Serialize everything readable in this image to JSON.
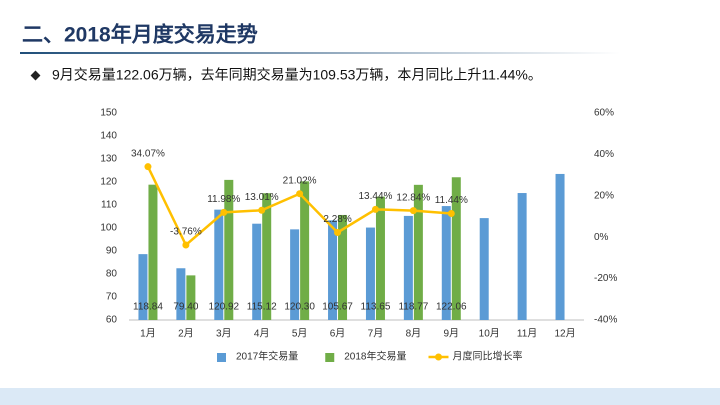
{
  "chart_data": {
    "type": "bar-line",
    "title": "二、2018年月度交易走势",
    "subtitle": "9月交易量122.06万辆，去年同期交易量为109.53万辆，本月同比上升11.44%。",
    "categories": [
      "1月",
      "2月",
      "3月",
      "4月",
      "5月",
      "6月",
      "7月",
      "8月",
      "9月",
      "10月",
      "11月",
      "12月"
    ],
    "series": [
      {
        "name": "2017年交易量",
        "type": "bar",
        "color": "#5b9bd5",
        "values": [
          88.64,
          82.5,
          107.98,
          101.87,
          99.41,
          103.31,
          100.19,
          105.26,
          109.53,
          104.3,
          115.2,
          123.5
        ]
      },
      {
        "name": "2018年交易量",
        "type": "bar",
        "color": "#70ad47",
        "values": [
          118.84,
          79.4,
          120.92,
          115.12,
          120.3,
          105.67,
          113.65,
          118.77,
          122.06,
          null,
          null,
          null
        ],
        "value_labels": [
          "118.84",
          "79.40",
          "120.92",
          "115.12",
          "120.30",
          "105.67",
          "113.65",
          "118.77",
          "122.06",
          null,
          null,
          null
        ]
      },
      {
        "name": "月度同比增长率",
        "type": "line",
        "axis": "y2",
        "color": "#ffc000",
        "values": [
          34.07,
          -3.76,
          11.98,
          13.01,
          21.02,
          2.28,
          13.44,
          12.84,
          11.44,
          null,
          null,
          null
        ],
        "value_labels": [
          "34.07%",
          "-3.76%",
          "11.98%",
          "13.01%",
          "21.02%",
          "2.28%",
          "13.44%",
          "12.84%",
          "11.44%",
          null,
          null,
          null
        ]
      }
    ],
    "ylim": [
      60,
      150
    ],
    "yticks": [
      60,
      70,
      80,
      90,
      100,
      110,
      120,
      130,
      140,
      150
    ],
    "y2lim": [
      -40,
      60
    ],
    "y2ticks": [
      {
        "value": -40,
        "label": "-40%"
      },
      {
        "value": -20,
        "label": "-20%"
      },
      {
        "value": 0,
        "label": "0%"
      },
      {
        "value": 20,
        "label": "20%"
      },
      {
        "value": 40,
        "label": "40%"
      },
      {
        "value": 60,
        "label": "60%"
      }
    ],
    "legend": "bottom"
  }
}
